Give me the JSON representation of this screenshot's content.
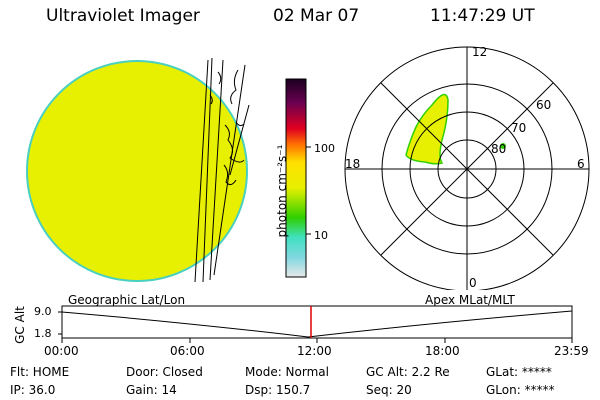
{
  "header": {
    "title": "Ultraviolet Imager",
    "date": "02 Mar 07",
    "time": "11:47:29 UT"
  },
  "colorbar": {
    "unit_label": "photon cm⁻²s⁻¹",
    "tick_100": "100",
    "tick_10": "10"
  },
  "polar": {
    "mlt_labels": {
      "top": "12",
      "left": "18",
      "right": "6",
      "bottom": "0"
    },
    "lat_labels": [
      "60",
      "70",
      "80"
    ]
  },
  "timeline": {
    "left_title": "Geographic Lat/Lon",
    "right_title": "Apex MLat/MLT",
    "axis_label": "GC Alt",
    "y_top": "9.0",
    "y_bottom": "1.8",
    "time_ticks": [
      "00:00",
      "06:00",
      "12:00",
      "18:00",
      "23:59"
    ]
  },
  "status": {
    "filter": "Flt: HOME",
    "ip": "IP: 36.0",
    "door": "Door: Closed",
    "gain": "Gain: 14",
    "mode": "Mode: Normal",
    "dsp": "Dsp:  150.7",
    "gc_alt": "GC Alt: 2.2 Re",
    "seq": "Seq: 20",
    "glat": "GLat: *****",
    "glon": "GLon: *****"
  },
  "colors": {
    "disk_fill": "#e7f000",
    "disk_edge": "#4ad0c0",
    "current_time_marker": "#e00000"
  }
}
